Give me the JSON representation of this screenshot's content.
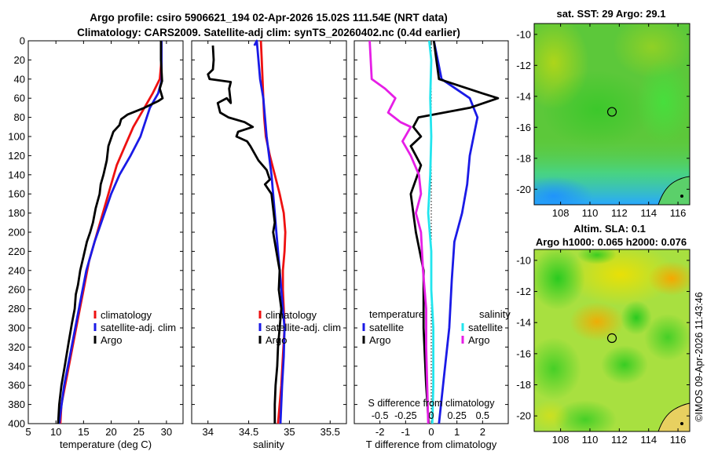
{
  "title": {
    "line1": "Argo profile: csiro 5906621_194 02-Apr-2026 15.02S 111.54E (NRT data)",
    "line2": "Climatology: CARS2009. Satellite-adj clim: synTS_20260402.nc (0.4d earlier)"
  },
  "watermark": "©IMOS 09-Apr-2026 11:43:46",
  "colors": {
    "climatology": "#ee1111",
    "satellite": "#1a1ae6",
    "argo": "#000000",
    "salinity_sat": "#22e5ee",
    "salinity_argo": "#e61ee6"
  },
  "chart_data": [
    {
      "type": "line",
      "id": "temperature",
      "xlabel": "temperature (deg C)",
      "ylabel": "",
      "xlim": [
        5,
        33
      ],
      "ylim": [
        0,
        400
      ],
      "xticks": [
        5,
        10,
        15,
        20,
        25,
        30
      ],
      "yticks": [
        0,
        20,
        40,
        60,
        80,
        100,
        120,
        140,
        160,
        180,
        200,
        220,
        240,
        260,
        280,
        300,
        320,
        340,
        360,
        380,
        400
      ],
      "legend": [
        "climatology",
        "satellite-adj. clim",
        "Argo"
      ],
      "series": [
        {
          "name": "climatology",
          "color": "#ee1111",
          "points": [
            [
              29.1,
              0
            ],
            [
              29.1,
              20
            ],
            [
              28.8,
              40
            ],
            [
              27.5,
              55
            ],
            [
              26,
              70
            ],
            [
              24,
              90
            ],
            [
              22.5,
              110
            ],
            [
              21,
              130
            ],
            [
              20,
              150
            ],
            [
              19,
              170
            ],
            [
              17.5,
              200
            ],
            [
              16,
              230
            ],
            [
              15,
              260
            ],
            [
              14,
              290
            ],
            [
              13,
              320
            ],
            [
              12,
              350
            ],
            [
              11,
              380
            ],
            [
              10.8,
              400
            ]
          ]
        },
        {
          "name": "satellite-adj. clim",
          "color": "#1a1ae6",
          "points": [
            [
              29.1,
              0
            ],
            [
              29.1,
              20
            ],
            [
              29.1,
              42
            ],
            [
              28.5,
              55
            ],
            [
              27,
              70
            ],
            [
              25.3,
              100
            ],
            [
              23.5,
              120
            ],
            [
              21.5,
              140
            ],
            [
              20,
              160
            ],
            [
              18.5,
              185
            ],
            [
              17,
              210
            ],
            [
              15.5,
              240
            ],
            [
              14.5,
              270
            ],
            [
              13.5,
              300
            ],
            [
              12.5,
              330
            ],
            [
              11.5,
              360
            ],
            [
              10.8,
              390
            ],
            [
              10.6,
              400
            ]
          ]
        },
        {
          "name": "Argo",
          "color": "#000000",
          "points": [
            [
              29.0,
              0
            ],
            [
              29.0,
              20
            ],
            [
              29.2,
              42
            ],
            [
              28.8,
              50
            ],
            [
              29.3,
              60
            ],
            [
              28.5,
              63
            ],
            [
              26,
              70
            ],
            [
              23,
              77
            ],
            [
              21.8,
              82
            ],
            [
              21.5,
              88
            ],
            [
              20.4,
              95
            ],
            [
              19.5,
              110
            ],
            [
              19.2,
              125
            ],
            [
              18.6,
              140
            ],
            [
              18.1,
              150
            ],
            [
              17.9,
              160
            ],
            [
              17.2,
              175
            ],
            [
              16.7,
              190
            ],
            [
              16.2,
              200
            ],
            [
              15.6,
              210
            ],
            [
              15,
              225
            ],
            [
              14.4,
              240
            ],
            [
              14,
              255
            ],
            [
              13.6,
              265
            ],
            [
              13.4,
              280
            ],
            [
              12.9,
              295
            ],
            [
              12.3,
              315
            ],
            [
              11.6,
              340
            ],
            [
              11,
              360
            ],
            [
              10.6,
              380
            ],
            [
              10.4,
              400
            ]
          ]
        }
      ]
    },
    {
      "type": "line",
      "id": "salinity",
      "xlabel": "salinity",
      "xlim": [
        33.8,
        35.7
      ],
      "ylim": [
        0,
        400
      ],
      "xticks": [
        34,
        34.5,
        35,
        35.5
      ],
      "legend": [
        "climatology",
        "satellite-adj. clim",
        "Argo"
      ],
      "series": [
        {
          "name": "climatology",
          "color": "#ee1111",
          "points": [
            [
              34.65,
              0
            ],
            [
              34.66,
              20
            ],
            [
              34.67,
              40
            ],
            [
              34.68,
              60
            ],
            [
              34.69,
              80
            ],
            [
              34.71,
              100
            ],
            [
              34.76,
              120
            ],
            [
              34.82,
              140
            ],
            [
              34.88,
              160
            ],
            [
              34.93,
              180
            ],
            [
              34.95,
              200
            ],
            [
              34.94,
              220
            ],
            [
              34.92,
              240
            ],
            [
              34.92,
              260
            ],
            [
              34.93,
              280
            ],
            [
              34.94,
              300
            ],
            [
              34.92,
              330
            ],
            [
              34.9,
              360
            ],
            [
              34.86,
              400
            ]
          ]
        },
        {
          "name": "satellite-adj. clim",
          "color": "#1a1ae6",
          "points": [
            [
              34.57,
              5
            ],
            [
              34.6,
              0
            ],
            [
              34.62,
              20
            ],
            [
              34.64,
              40
            ],
            [
              34.68,
              60
            ],
            [
              34.7,
              80
            ],
            [
              34.72,
              100
            ],
            [
              34.75,
              120
            ],
            [
              34.78,
              140
            ],
            [
              34.8,
              160
            ],
            [
              34.82,
              180
            ],
            [
              34.84,
              200
            ],
            [
              34.86,
              220
            ],
            [
              34.88,
              240
            ],
            [
              34.9,
              260
            ],
            [
              34.92,
              280
            ],
            [
              34.94,
              300
            ],
            [
              34.93,
              330
            ],
            [
              34.91,
              360
            ],
            [
              34.89,
              400
            ]
          ]
        },
        {
          "name": "Argo",
          "color": "#000000",
          "points": [
            [
              34.06,
              5
            ],
            [
              34.07,
              20
            ],
            [
              34.06,
              30
            ],
            [
              34.0,
              35
            ],
            [
              34.02,
              40
            ],
            [
              34.28,
              43
            ],
            [
              34.26,
              50
            ],
            [
              34.28,
              65
            ],
            [
              34.23,
              60
            ],
            [
              34.12,
              65
            ],
            [
              34.15,
              75
            ],
            [
              34.25,
              80
            ],
            [
              34.45,
              85
            ],
            [
              34.55,
              90
            ],
            [
              34.37,
              95
            ],
            [
              34.35,
              100
            ],
            [
              34.48,
              105
            ],
            [
              34.52,
              110
            ],
            [
              34.62,
              125
            ],
            [
              34.72,
              135
            ],
            [
              34.76,
              145
            ],
            [
              34.7,
              150
            ],
            [
              34.78,
              160
            ],
            [
              34.8,
              175
            ],
            [
              34.82,
              190
            ],
            [
              34.8,
              200
            ],
            [
              34.84,
              220
            ],
            [
              34.88,
              240
            ],
            [
              34.87,
              260
            ],
            [
              34.9,
              280
            ],
            [
              34.88,
              300
            ],
            [
              34.86,
              320
            ],
            [
              34.85,
              340
            ],
            [
              34.83,
              360
            ],
            [
              34.82,
              380
            ],
            [
              34.82,
              400
            ]
          ]
        }
      ]
    },
    {
      "type": "line",
      "id": "differences",
      "xlabel": "T difference from climatology",
      "xlabel_top": "S difference from climatology",
      "xlim": [
        -3,
        3
      ],
      "ylim": [
        0,
        400
      ],
      "xticks": [
        -2,
        -1,
        0,
        1,
        2
      ],
      "xlim_top": [
        -0.75,
        0.75
      ],
      "xticks_top": [
        -0.5,
        -0.25,
        0,
        0.25,
        0.5
      ],
      "xticklabels_top": [
        "-0.5",
        "-0.25",
        "0",
        "0.25",
        "0.5"
      ],
      "legend_headers": [
        "temperature",
        "salinity"
      ],
      "legend": [
        "satellite",
        "Argo",
        "satellite",
        "Argo"
      ],
      "series": [
        {
          "name": "temperature satellite",
          "color": "#1a1ae6",
          "points": [
            [
              0.1,
              0
            ],
            [
              0.4,
              40
            ],
            [
              1.5,
              60
            ],
            [
              1.8,
              80
            ],
            [
              1.5,
              120
            ],
            [
              1.4,
              150
            ],
            [
              1.2,
              180
            ],
            [
              0.9,
              210
            ],
            [
              0.8,
              250
            ],
            [
              0.7,
              300
            ],
            [
              0.5,
              350
            ],
            [
              0.3,
              400
            ]
          ]
        },
        {
          "name": "temperature Argo",
          "color": "#000000",
          "points": [
            [
              0.1,
              0
            ],
            [
              0.2,
              20
            ],
            [
              0.3,
              40
            ],
            [
              2.0,
              55
            ],
            [
              2.6,
              60
            ],
            [
              1.5,
              70
            ],
            [
              -0.5,
              80
            ],
            [
              -0.7,
              90
            ],
            [
              -0.4,
              100
            ],
            [
              -0.8,
              110
            ],
            [
              -0.4,
              130
            ],
            [
              -0.8,
              160
            ],
            [
              -0.6,
              200
            ],
            [
              -0.3,
              240
            ],
            [
              -0.3,
              300
            ],
            [
              -0.2,
              360
            ],
            [
              -0.1,
              400
            ]
          ]
        },
        {
          "name": "salinity satellite",
          "color": "#22e5ee",
          "points": [
            [
              -0.02,
              0
            ],
            [
              0.0,
              20
            ],
            [
              -0.01,
              60
            ],
            [
              0.0,
              100
            ],
            [
              -0.01,
              140
            ],
            [
              -0.03,
              180
            ],
            [
              0.0,
              220
            ],
            [
              0.0,
              260
            ],
            [
              0.02,
              300
            ],
            [
              0.02,
              360
            ],
            [
              0.01,
              400
            ]
          ]
        },
        {
          "name": "salinity Argo",
          "color": "#e61ee6",
          "points": [
            [
              -0.6,
              0
            ],
            [
              -0.58,
              40
            ],
            [
              -0.45,
              50
            ],
            [
              -0.35,
              60
            ],
            [
              -0.42,
              75
            ],
            [
              -0.3,
              85
            ],
            [
              -0.2,
              90
            ],
            [
              -0.28,
              105
            ],
            [
              -0.2,
              120
            ],
            [
              -0.12,
              140
            ],
            [
              -0.1,
              160
            ],
            [
              -0.15,
              180
            ],
            [
              -0.1,
              200
            ],
            [
              -0.08,
              240
            ],
            [
              -0.05,
              280
            ],
            [
              -0.05,
              320
            ],
            [
              -0.04,
              360
            ],
            [
              -0.03,
              400
            ]
          ]
        }
      ]
    },
    {
      "type": "heatmap",
      "id": "sst_map",
      "title": "sat. SST: 29 Argo: 29.1",
      "xlim": [
        106.2,
        116.8
      ],
      "ylim": [
        -21,
        -9.3
      ],
      "xticks": [
        108,
        110,
        112,
        114,
        116
      ],
      "yticks": [
        -10,
        -12,
        -14,
        -16,
        -18,
        -20
      ],
      "marker": {
        "lon": 111.5,
        "lat": -15.0
      }
    },
    {
      "type": "heatmap",
      "id": "sla_map",
      "title_line1": "Altim. SLA: 0.1",
      "title_line2": "Argo h1000: 0.065 h2000: 0.076",
      "xlim": [
        106.2,
        116.8
      ],
      "ylim": [
        -21,
        -9.3
      ],
      "xticks": [
        108,
        110,
        112,
        114,
        116
      ],
      "yticks": [
        -10,
        -12,
        -14,
        -16,
        -18,
        -20
      ],
      "marker": {
        "lon": 111.5,
        "lat": -15.0
      }
    }
  ]
}
